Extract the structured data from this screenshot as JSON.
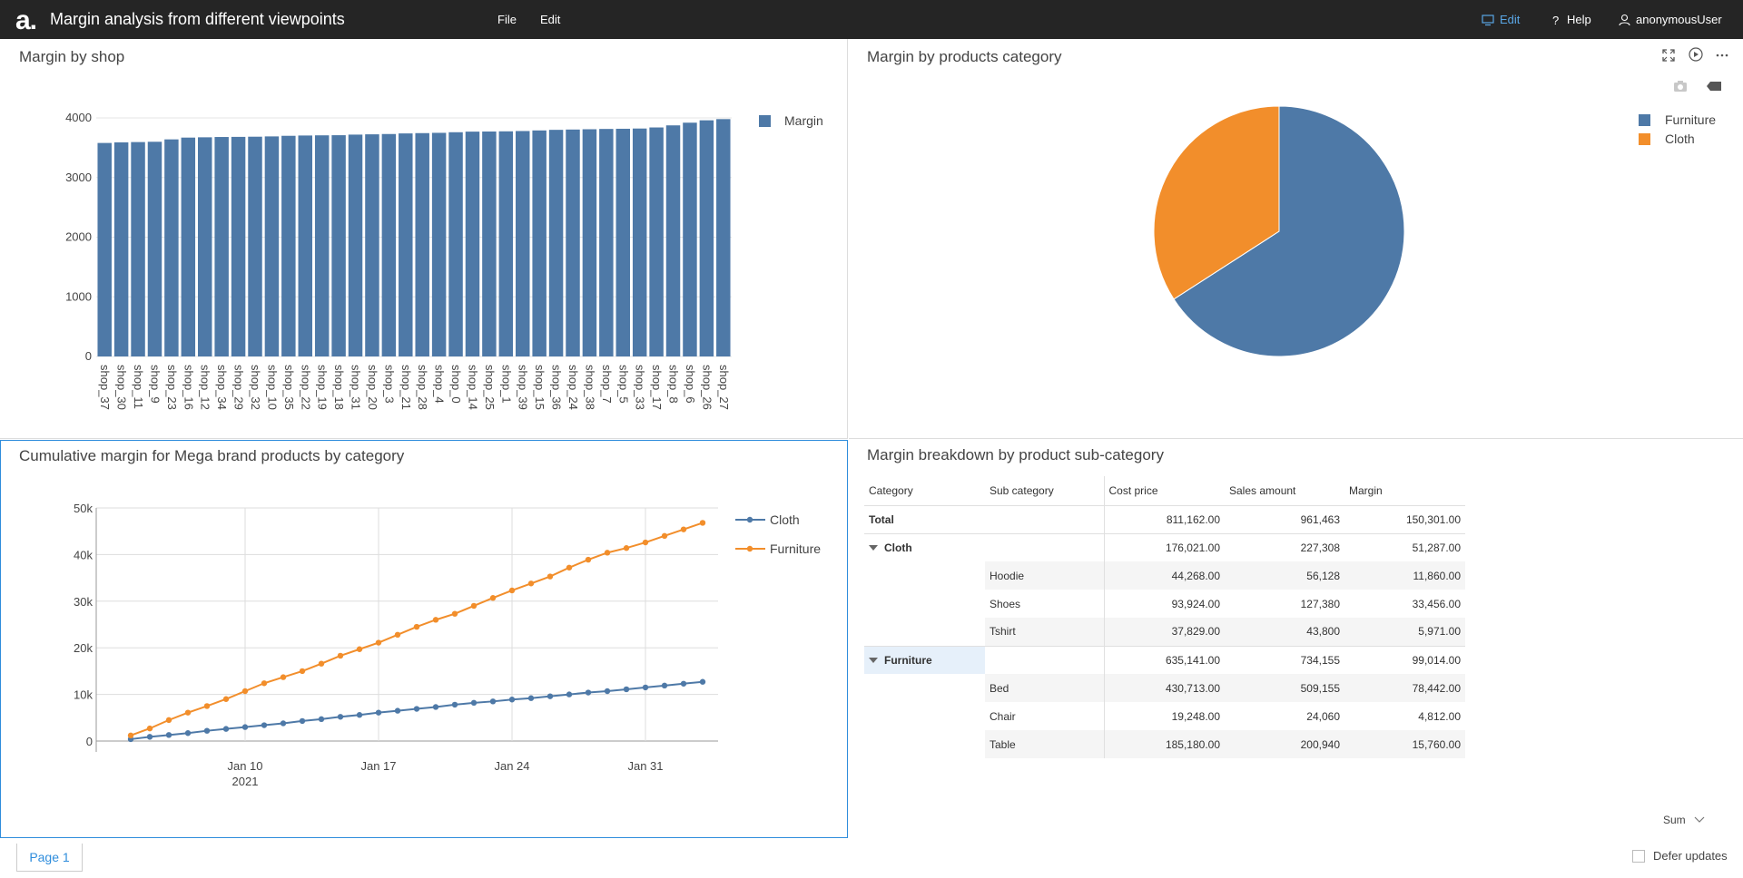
{
  "app": {
    "logo": "a.",
    "title": "Margin analysis from different viewpoints",
    "menu": [
      "File",
      "Edit"
    ],
    "edit_mode": "Edit",
    "help": "Help",
    "user": "anonymousUser"
  },
  "colors": {
    "blue": "#4e79a7",
    "orange": "#f28e2b",
    "accent": "#2f8ddc",
    "topbar": "#252525"
  },
  "panels": {
    "shop": {
      "title": "Margin by shop"
    },
    "category": {
      "title": "Margin by products category"
    },
    "cumulative": {
      "title": "Cumulative margin for Mega brand products by category"
    },
    "breakdown": {
      "title": "Margin breakdown by product sub-category"
    }
  },
  "chart_data": [
    {
      "type": "bar",
      "categories": [
        "shop_37",
        "shop_30",
        "shop_11",
        "shop_9",
        "shop_23",
        "shop_16",
        "shop_12",
        "shop_34",
        "shop_29",
        "shop_32",
        "shop_10",
        "shop_35",
        "shop_22",
        "shop_19",
        "shop_18",
        "shop_31",
        "shop_20",
        "shop_3",
        "shop_21",
        "shop_28",
        "shop_4",
        "shop_0",
        "shop_14",
        "shop_25",
        "shop_1",
        "shop_39",
        "shop_15",
        "shop_36",
        "shop_24",
        "shop_38",
        "shop_7",
        "shop_5",
        "shop_33",
        "shop_17",
        "shop_8",
        "shop_6",
        "shop_26",
        "shop_27"
      ],
      "series": [
        {
          "name": "Margin",
          "values": [
            3580,
            3590,
            3595,
            3600,
            3640,
            3670,
            3675,
            3680,
            3682,
            3685,
            3690,
            3700,
            3705,
            3708,
            3710,
            3720,
            3725,
            3730,
            3740,
            3745,
            3750,
            3760,
            3770,
            3772,
            3775,
            3780,
            3790,
            3800,
            3805,
            3810,
            3815,
            3818,
            3822,
            3840,
            3875,
            3920,
            3960,
            3980
          ]
        }
      ],
      "ylim": [
        0,
        4000
      ],
      "yticks": [
        "0",
        "1000",
        "2000",
        "3000",
        "4000"
      ],
      "legend": "top-right"
    },
    {
      "type": "pie",
      "slices": [
        {
          "name": "Furniture",
          "value": 99014
        },
        {
          "name": "Cloth",
          "value": 51287
        }
      ],
      "legend": "top-right"
    },
    {
      "type": "line",
      "x_start": "2021-01-04",
      "x_ticks": [
        "Jan 10",
        "Jan 17",
        "Jan 24",
        "Jan 31"
      ],
      "x_sublabel": "2021",
      "yticks": [
        "0",
        "10k",
        "20k",
        "30k",
        "40k",
        "50k"
      ],
      "ylim": [
        0,
        50000
      ],
      "series": [
        {
          "name": "Cloth",
          "values": [
            400,
            900,
            1300,
            1700,
            2200,
            2600,
            3000,
            3400,
            3800,
            4300,
            4700,
            5200,
            5600,
            6100,
            6500,
            6900,
            7300,
            7800,
            8200,
            8500,
            8900,
            9200,
            9600,
            10000,
            10400,
            10700,
            11100,
            11500,
            11900,
            12300,
            12700
          ]
        },
        {
          "name": "Furniture",
          "values": [
            1200,
            2700,
            4500,
            6100,
            7500,
            9000,
            10700,
            12400,
            13700,
            15000,
            16600,
            18300,
            19700,
            21100,
            22800,
            24500,
            26000,
            27300,
            29000,
            30700,
            32300,
            33800,
            35300,
            37200,
            38900,
            40400,
            41400,
            42600,
            44000,
            45400,
            46800
          ]
        }
      ],
      "legend": "top-right"
    }
  ],
  "pivot": {
    "headers": [
      "Category",
      "Sub category",
      "Cost price",
      "Sales amount",
      "Margin"
    ],
    "total": {
      "label": "Total",
      "cost": "811,162.00",
      "sales": "961,463",
      "margin": "150,301.00"
    },
    "groups": [
      {
        "label": "Cloth",
        "cost": "176,021.00",
        "sales": "227,308",
        "margin": "51,287.00",
        "rows": [
          {
            "sub": "Hoodie",
            "cost": "44,268.00",
            "sales": "56,128",
            "margin": "11,860.00"
          },
          {
            "sub": "Shoes",
            "cost": "93,924.00",
            "sales": "127,380",
            "margin": "33,456.00"
          },
          {
            "sub": "Tshirt",
            "cost": "37,829.00",
            "sales": "43,800",
            "margin": "5,971.00"
          }
        ]
      },
      {
        "label": "Furniture",
        "cost": "635,141.00",
        "sales": "734,155",
        "margin": "99,014.00",
        "rows": [
          {
            "sub": "Bed",
            "cost": "430,713.00",
            "sales": "509,155",
            "margin": "78,442.00"
          },
          {
            "sub": "Chair",
            "cost": "19,248.00",
            "sales": "24,060",
            "margin": "4,812.00"
          },
          {
            "sub": "Table",
            "cost": "185,180.00",
            "sales": "200,940",
            "margin": "15,760.00"
          }
        ]
      }
    ],
    "aggregate": "Sum"
  },
  "footer": {
    "page_tab": "Page 1",
    "defer_label": "Defer updates"
  }
}
